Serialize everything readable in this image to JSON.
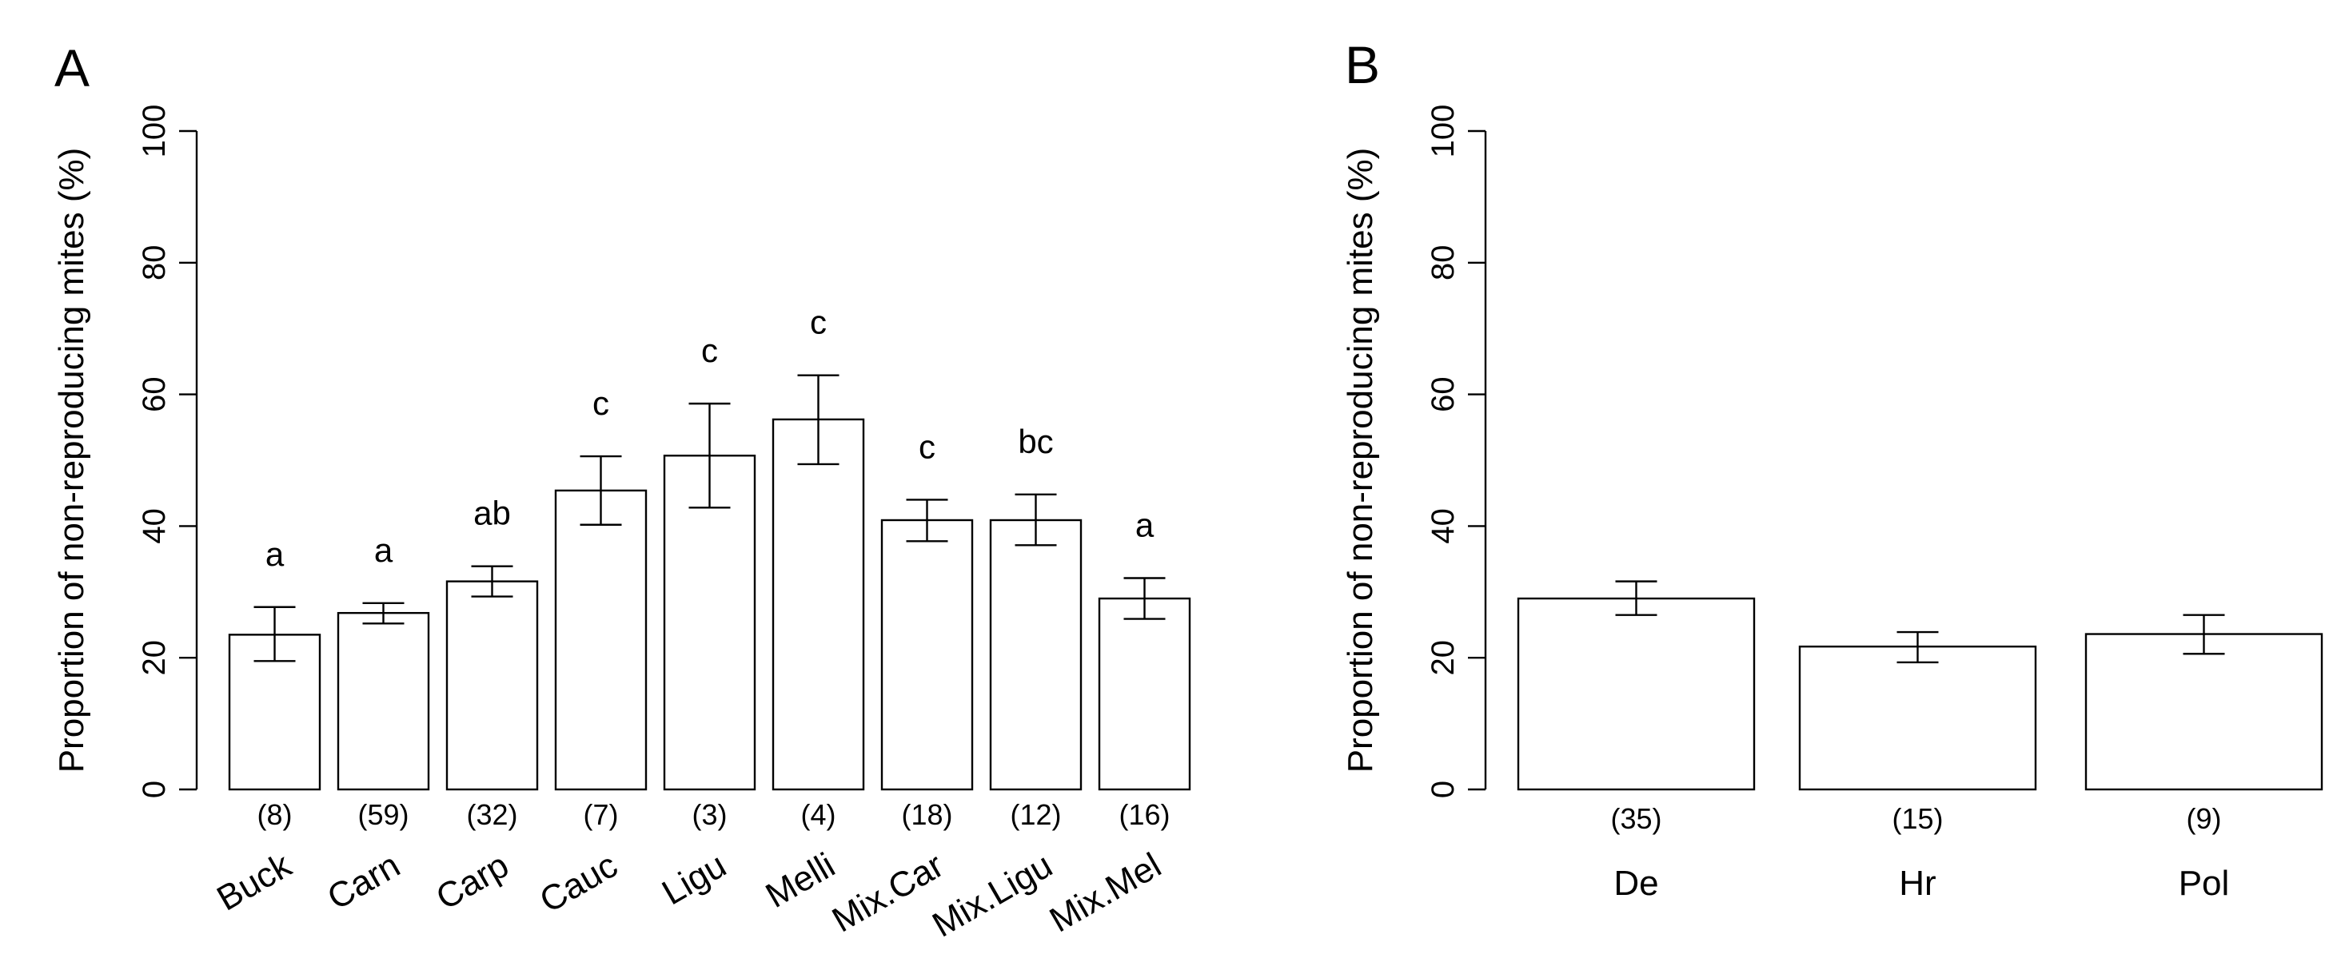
{
  "chart_data": [
    {
      "type": "bar",
      "panel_label": "A",
      "ylabel": "Proportion of non-reproducing mites (%)",
      "ylim": [
        0,
        100
      ],
      "yticks": [
        0,
        20,
        40,
        60,
        80,
        100
      ],
      "categories": [
        "Buck",
        "Carn",
        "Carp",
        "Cauc",
        "Ligu",
        "Melli",
        "Mix.Car",
        "Mix.Ligu",
        "Mix.Mel"
      ],
      "values": [
        23.5,
        26.8,
        31.6,
        45.4,
        50.7,
        56.2,
        40.9,
        40.9,
        29.0
      ],
      "error_low": [
        19.5,
        25.2,
        29.3,
        40.2,
        42.8,
        49.4,
        37.7,
        37.1,
        25.9
      ],
      "error_high": [
        27.7,
        28.3,
        33.9,
        50.6,
        58.6,
        62.9,
        44.0,
        44.8,
        32.1
      ],
      "n_labels": [
        "(8)",
        "(59)",
        "(32)",
        "(7)",
        "(3)",
        "(4)",
        "(18)",
        "(12)",
        "(16)"
      ],
      "significance": [
        "a",
        "a",
        "ab",
        "c",
        "c",
        "c",
        "c",
        "bc",
        "a"
      ]
    },
    {
      "type": "bar",
      "panel_label": "B",
      "ylabel": "Proportion of non-reproducing mites (%)",
      "ylim": [
        0,
        100
      ],
      "yticks": [
        0,
        20,
        40,
        60,
        80,
        100
      ],
      "categories": [
        "De",
        "Hr",
        "Pol"
      ],
      "values": [
        29.0,
        21.7,
        23.6
      ],
      "error_low": [
        26.5,
        19.3,
        20.6
      ],
      "error_high": [
        31.6,
        23.9,
        26.5
      ],
      "n_labels": [
        "(35)",
        "(15)",
        "(9)"
      ]
    }
  ]
}
